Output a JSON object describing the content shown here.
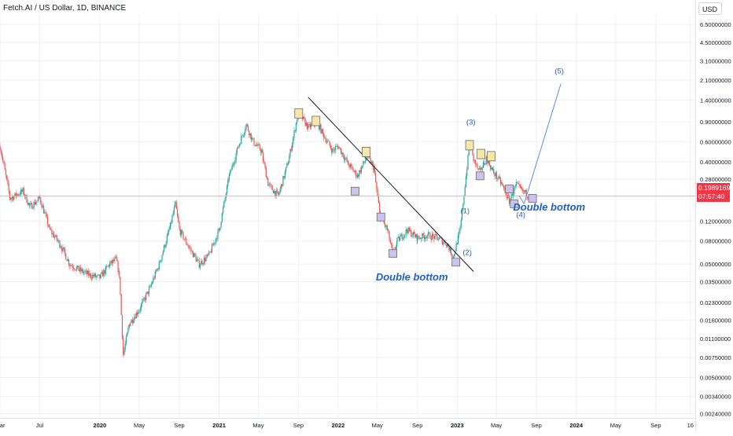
{
  "header": {
    "symbol_title": "Fetch.AI / US Dollar, 1D, BINANCE",
    "currency": "USD"
  },
  "price_tag": {
    "price": "0.19891698",
    "countdown": "07:57:40"
  },
  "chart_data": {
    "type": "candlestick",
    "title": "Fetch.AI / US Dollar, 1D, BINANCE",
    "y_scale": "log",
    "ylim": [
      0.0022,
      8.0
    ],
    "xlim": [
      "2019-03-01",
      "2024-12-31"
    ],
    "y_ticks": [
      "6.50000000",
      "4.50000000",
      "3.10000000",
      "2.10000000",
      "1.40000000",
      "0.90000000",
      "0.60000000",
      "0.40000000",
      "0.28000000",
      "0.12000000",
      "0.08000000",
      "0.05000000",
      "0.03500000",
      "0.02300000",
      "0.01600000",
      "0.01100000",
      "0.00750000",
      "0.00500000",
      "0.00340000",
      "0.00240000"
    ],
    "x_ticks": [
      {
        "label": "Mar",
        "date": "2019-03-01"
      },
      {
        "label": "Jul",
        "date": "2019-07-01"
      },
      {
        "label": "2020",
        "date": "2020-01-01"
      },
      {
        "label": "May",
        "date": "2020-05-01"
      },
      {
        "label": "Sep",
        "date": "2020-09-01"
      },
      {
        "label": "2021",
        "date": "2021-01-01"
      },
      {
        "label": "May",
        "date": "2021-05-01"
      },
      {
        "label": "Sep",
        "date": "2021-09-01"
      },
      {
        "label": "2022",
        "date": "2022-01-01"
      },
      {
        "label": "May",
        "date": "2022-05-01"
      },
      {
        "label": "Sep",
        "date": "2022-09-01"
      },
      {
        "label": "2023",
        "date": "2023-01-01"
      },
      {
        "label": "May",
        "date": "2023-05-01"
      },
      {
        "label": "Sep",
        "date": "2023-09-01"
      },
      {
        "label": "2024",
        "date": "2024-01-01"
      },
      {
        "label": "May",
        "date": "2024-05-01"
      },
      {
        "label": "Sep",
        "date": "2024-09-01"
      },
      {
        "label": "16",
        "date": "2024-12-16"
      }
    ],
    "series": [
      {
        "price_path": [
          [
            "2019-03-01",
            0.55
          ],
          [
            "2019-04-01",
            0.19
          ],
          [
            "2019-05-10",
            0.22
          ],
          [
            "2019-06-01",
            0.16
          ],
          [
            "2019-07-01",
            0.19
          ],
          [
            "2019-08-01",
            0.1
          ],
          [
            "2019-09-01",
            0.075
          ],
          [
            "2019-10-01",
            0.05
          ],
          [
            "2019-11-01",
            0.044
          ],
          [
            "2019-12-01",
            0.04
          ],
          [
            "2020-01-01",
            0.038
          ],
          [
            "2020-02-01",
            0.05
          ],
          [
            "2020-02-20",
            0.055
          ],
          [
            "2020-03-01",
            0.04
          ],
          [
            "2020-03-13",
            0.008
          ],
          [
            "2020-04-01",
            0.015
          ],
          [
            "2020-05-01",
            0.02
          ],
          [
            "2020-06-01",
            0.03
          ],
          [
            "2020-07-01",
            0.05
          ],
          [
            "2020-08-01",
            0.1
          ],
          [
            "2020-08-20",
            0.17
          ],
          [
            "2020-09-01",
            0.1
          ],
          [
            "2020-10-01",
            0.07
          ],
          [
            "2020-11-01",
            0.05
          ],
          [
            "2020-12-01",
            0.06
          ],
          [
            "2021-01-01",
            0.1
          ],
          [
            "2021-02-01",
            0.3
          ],
          [
            "2021-03-01",
            0.55
          ],
          [
            "2021-03-25",
            0.85
          ],
          [
            "2021-04-15",
            0.6
          ],
          [
            "2021-05-10",
            0.5
          ],
          [
            "2021-06-01",
            0.25
          ],
          [
            "2021-07-01",
            0.2
          ],
          [
            "2021-08-01",
            0.4
          ],
          [
            "2021-09-01",
            1.1
          ],
          [
            "2021-10-01",
            0.8
          ],
          [
            "2021-10-28",
            0.9
          ],
          [
            "2021-11-15",
            0.7
          ],
          [
            "2021-12-15",
            0.5
          ],
          [
            "2022-01-01",
            0.55
          ],
          [
            "2022-02-01",
            0.38
          ],
          [
            "2022-03-01",
            0.3
          ],
          [
            "2022-04-01",
            0.45
          ],
          [
            "2022-04-20",
            0.35
          ],
          [
            "2022-05-10",
            0.13
          ],
          [
            "2022-06-01",
            0.1
          ],
          [
            "2022-06-18",
            0.06
          ],
          [
            "2022-07-01",
            0.08
          ],
          [
            "2022-08-01",
            0.1
          ],
          [
            "2022-09-01",
            0.085
          ],
          [
            "2022-10-01",
            0.09
          ],
          [
            "2022-11-01",
            0.085
          ],
          [
            "2022-12-01",
            0.075
          ],
          [
            "2022-12-20",
            0.058
          ],
          [
            "2023-01-10",
            0.1
          ],
          [
            "2023-01-25",
            0.25
          ],
          [
            "2023-02-08",
            0.58
          ],
          [
            "2023-02-20",
            0.42
          ],
          [
            "2023-03-10",
            0.32
          ],
          [
            "2023-04-01",
            0.43
          ],
          [
            "2023-04-20",
            0.33
          ],
          [
            "2023-05-15",
            0.26
          ],
          [
            "2023-06-10",
            0.18
          ],
          [
            "2023-07-01",
            0.25
          ],
          [
            "2023-07-20",
            0.22
          ],
          [
            "2023-08-10",
            0.2
          ],
          [
            "2023-08-20",
            0.19
          ]
        ]
      }
    ],
    "current_price_line": 0.19891698,
    "annotations": {
      "elliott_waves": [
        {
          "label": "(1)",
          "date": "2023-01-25",
          "price": 0.14
        },
        {
          "label": "(2)",
          "date": "2023-02-01",
          "price": 0.06
        },
        {
          "label": "(3)",
          "date": "2023-02-12",
          "price": 0.85
        },
        {
          "label": "(4)",
          "date": "2023-07-15",
          "price": 0.13
        },
        {
          "label": "(5)",
          "date": "2023-11-10",
          "price": 2.4
        }
      ],
      "projection_line": [
        [
          "2023-07-25",
          0.17
        ],
        [
          "2023-11-15",
          1.95
        ]
      ],
      "trendline": [
        [
          "2021-10-01",
          1.48
        ],
        [
          "2023-02-20",
          0.043
        ]
      ],
      "text_labels": [
        {
          "text": "Double bottom",
          "date": "2022-08-15",
          "price": 0.036
        },
        {
          "text": "Double bottom",
          "date": "2023-10-10",
          "price": 0.148
        }
      ],
      "pivot_highs": [
        {
          "date": "2021-09-02",
          "price": 1.05
        },
        {
          "date": "2021-10-25",
          "price": 0.9
        },
        {
          "date": "2022-03-28",
          "price": 0.48
        },
        {
          "date": "2023-02-08",
          "price": 0.55
        },
        {
          "date": "2023-03-15",
          "price": 0.46
        },
        {
          "date": "2023-04-15",
          "price": 0.44
        }
      ],
      "pivot_lows": [
        {
          "date": "2022-02-22",
          "price": 0.22
        },
        {
          "date": "2022-05-12",
          "price": 0.13
        },
        {
          "date": "2022-06-18",
          "price": 0.062
        },
        {
          "date": "2022-12-28",
          "price": 0.052
        },
        {
          "date": "2023-03-12",
          "price": 0.3
        },
        {
          "date": "2023-06-10",
          "price": 0.23
        },
        {
          "date": "2023-06-25",
          "price": 0.17
        },
        {
          "date": "2023-08-20",
          "price": 0.19
        }
      ]
    },
    "colors": {
      "up": "#26a69a",
      "down": "#ef5350",
      "annotation_blue": "#1e5fc9",
      "projection": "#5b8def",
      "trendline": "#131722",
      "pivot_high_fill": "#f6e7a6",
      "pivot_low_fill": "#c9c3ee",
      "price_line": "#f7a9a9",
      "price_tag_bg": "#f23645",
      "grid": "#eef0f3"
    }
  }
}
